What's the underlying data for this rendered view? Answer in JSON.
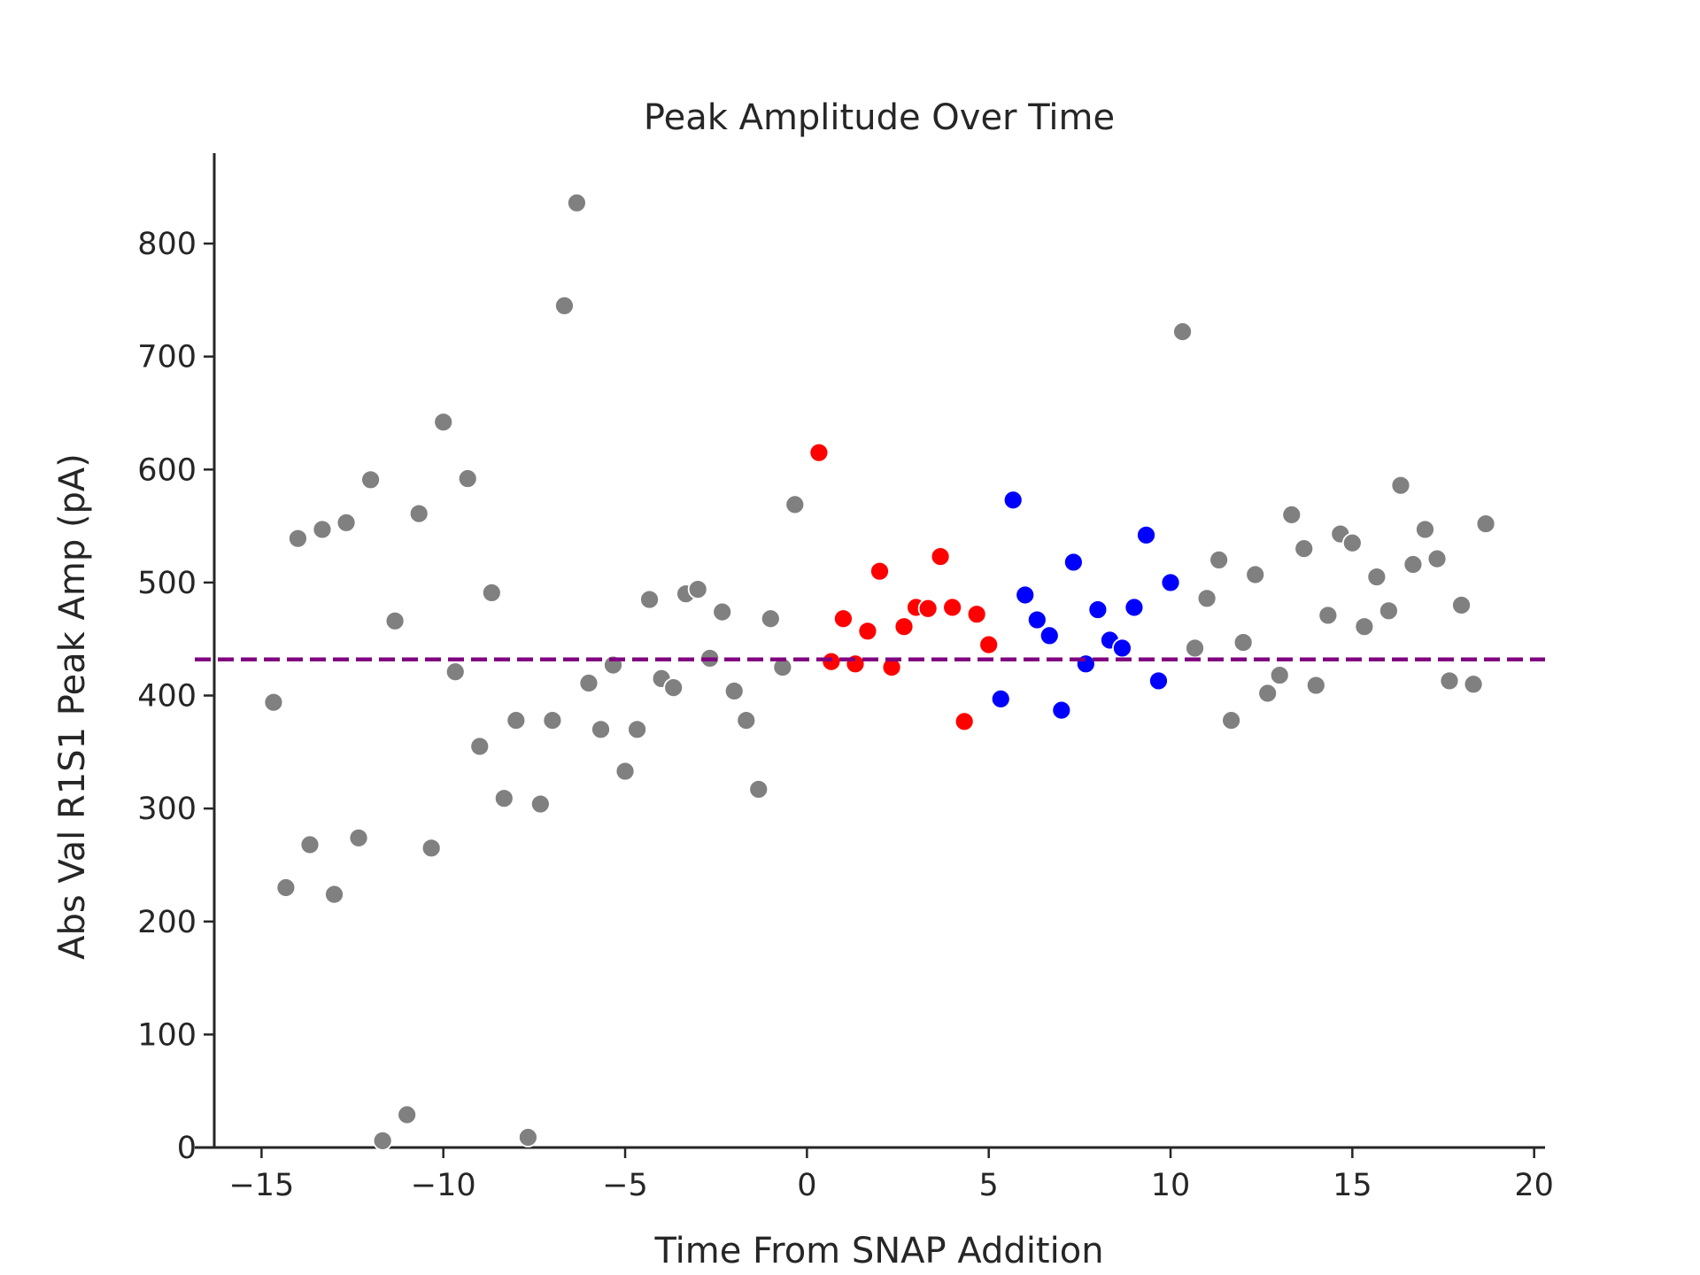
{
  "chart_data": {
    "type": "scatter",
    "title": "Peak Amplitude Over Time",
    "xlabel": "Time From SNAP Addition",
    "ylabel": "Abs Val R1S1 Peak Amp (pA)",
    "xlim": [
      -16.3,
      20.3
    ],
    "ylim": [
      0,
      880
    ],
    "xticks": [
      -15,
      -10,
      -5,
      0,
      5,
      10,
      15,
      20
    ],
    "xtick_labels": [
      "−15",
      "−10",
      "−5",
      "0",
      "5",
      "10",
      "15",
      "20"
    ],
    "yticks": [
      0,
      100,
      200,
      300,
      400,
      500,
      600,
      700,
      800
    ],
    "ytick_labels": [
      "0",
      "100",
      "200",
      "300",
      "400",
      "500",
      "600",
      "700",
      "800"
    ],
    "grid": false,
    "reference_line": {
      "orientation": "horizontal",
      "y": 432,
      "style": "dashed",
      "color": "#800080"
    },
    "series": [
      {
        "color": "#808080",
        "points": [
          [
            -14.67,
            394
          ],
          [
            -14.33,
            230
          ],
          [
            -14.0,
            539
          ],
          [
            -13.67,
            268
          ],
          [
            -13.33,
            547
          ],
          [
            -13.0,
            224
          ],
          [
            -12.67,
            553
          ],
          [
            -12.33,
            274
          ],
          [
            -12.0,
            591
          ],
          [
            -11.67,
            6
          ],
          [
            -11.33,
            466
          ],
          [
            -11.0,
            29
          ],
          [
            -10.67,
            561
          ],
          [
            -10.33,
            265
          ],
          [
            -10.0,
            642
          ],
          [
            -9.67,
            421
          ],
          [
            -9.33,
            592
          ],
          [
            -9.0,
            355
          ],
          [
            -8.67,
            491
          ],
          [
            -8.33,
            309
          ],
          [
            -8.0,
            378
          ],
          [
            -7.67,
            9
          ],
          [
            -7.33,
            304
          ],
          [
            -7.0,
            378
          ],
          [
            -6.67,
            745
          ],
          [
            -6.33,
            836
          ],
          [
            -6.0,
            411
          ],
          [
            -5.67,
            370
          ],
          [
            -5.33,
            427
          ],
          [
            -5.0,
            333
          ],
          [
            -4.67,
            370
          ],
          [
            -4.33,
            485
          ],
          [
            -4.0,
            415
          ],
          [
            -3.67,
            407
          ],
          [
            -3.33,
            490
          ],
          [
            -3.0,
            494
          ],
          [
            -2.67,
            433
          ],
          [
            -2.33,
            474
          ],
          [
            -2.0,
            404
          ],
          [
            -1.67,
            378
          ],
          [
            -1.33,
            317
          ],
          [
            -1.0,
            468
          ],
          [
            -0.67,
            425
          ],
          [
            -0.33,
            569
          ],
          [
            10.33,
            722
          ],
          [
            10.67,
            442
          ],
          [
            11.0,
            486
          ],
          [
            11.33,
            520
          ],
          [
            11.67,
            378
          ],
          [
            12.0,
            447
          ],
          [
            12.33,
            507
          ],
          [
            12.67,
            402
          ],
          [
            13.0,
            418
          ],
          [
            13.33,
            560
          ],
          [
            13.67,
            530
          ],
          [
            14.0,
            409
          ],
          [
            14.33,
            471
          ],
          [
            14.67,
            543
          ],
          [
            15.0,
            535
          ],
          [
            15.33,
            461
          ],
          [
            15.67,
            505
          ],
          [
            16.0,
            475
          ],
          [
            16.33,
            586
          ],
          [
            16.67,
            516
          ],
          [
            17.0,
            547
          ],
          [
            17.33,
            521
          ],
          [
            17.67,
            413
          ],
          [
            18.0,
            480
          ],
          [
            18.33,
            410
          ],
          [
            18.67,
            552
          ]
        ]
      },
      {
        "color": "#ff0000",
        "points": [
          [
            0.33,
            615
          ],
          [
            0.67,
            430
          ],
          [
            1.0,
            468
          ],
          [
            1.33,
            428
          ],
          [
            1.67,
            457
          ],
          [
            2.0,
            510
          ],
          [
            2.33,
            425
          ],
          [
            2.67,
            461
          ],
          [
            3.0,
            478
          ],
          [
            3.33,
            477
          ],
          [
            3.67,
            523
          ],
          [
            4.0,
            478
          ],
          [
            4.33,
            377
          ],
          [
            4.67,
            472
          ],
          [
            5.0,
            445
          ]
        ]
      },
      {
        "color": "#0000ff",
        "points": [
          [
            5.33,
            397
          ],
          [
            5.67,
            573
          ],
          [
            6.0,
            489
          ],
          [
            6.33,
            467
          ],
          [
            6.67,
            453
          ],
          [
            7.0,
            387
          ],
          [
            7.33,
            518
          ],
          [
            7.67,
            428
          ],
          [
            8.0,
            476
          ],
          [
            8.33,
            449
          ],
          [
            8.67,
            442
          ],
          [
            9.0,
            478
          ],
          [
            9.33,
            542
          ],
          [
            9.67,
            413
          ],
          [
            10.0,
            500
          ]
        ]
      }
    ]
  }
}
